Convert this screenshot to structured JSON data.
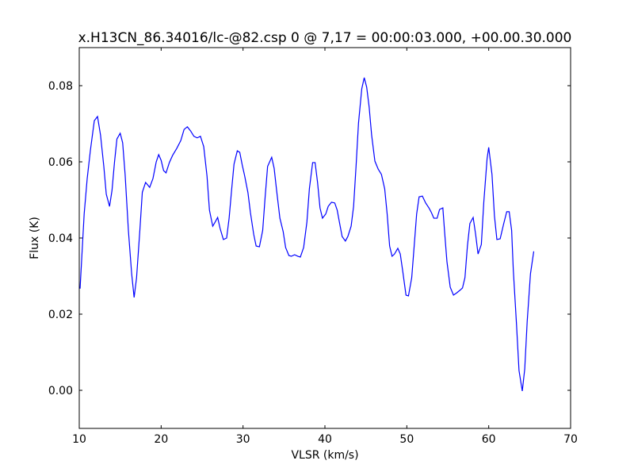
{
  "chart_data": {
    "type": "line",
    "title": "x.H13CN_86.34016/lc-@82.csp 0 @ 7,17 = 00:00:03.000, +00.00.30.000",
    "x_label": "VLSR (km/s)",
    "y_label": "Flux (K)",
    "xlim": [
      10,
      70
    ],
    "xticks": [
      10,
      20,
      30,
      40,
      50,
      60,
      70
    ],
    "ylim": [
      -0.01,
      0.09
    ],
    "yticks": [
      {
        "value": 0,
        "label": "0.00"
      },
      0.02,
      0.04,
      0.06,
      0.08
    ],
    "x": [
      10.1,
      10.6,
      10.97,
      11.36,
      11.84,
      12.23,
      12.6,
      13.0,
      13.3,
      13.7,
      14.0,
      14.3,
      14.6,
      15.0,
      15.3,
      15.6,
      16.0,
      16.4,
      16.7,
      17.0,
      17.4,
      17.7,
      18.1,
      18.6,
      19.0,
      19.4,
      19.7,
      20.0,
      20.3,
      20.6,
      21.0,
      21.4,
      21.9,
      22.4,
      22.8,
      23.2,
      23.6,
      24.0,
      24.4,
      24.8,
      25.2,
      25.6,
      25.9,
      26.3,
      26.6,
      26.9,
      27.2,
      27.6,
      28.0,
      28.3,
      28.6,
      28.9,
      29.3,
      29.6,
      29.9,
      30.2,
      30.6,
      30.9,
      31.3,
      31.6,
      32.0,
      32.4,
      32.7,
      33.0,
      33.5,
      33.8,
      34.1,
      34.5,
      34.9,
      35.2,
      35.6,
      35.9,
      36.3,
      36.7,
      37.0,
      37.4,
      37.8,
      38.1,
      38.5,
      38.8,
      39.1,
      39.4,
      39.7,
      40.1,
      40.4,
      40.8,
      41.2,
      41.5,
      41.8,
      42.1,
      42.5,
      42.8,
      43.2,
      43.5,
      43.8,
      44.1,
      44.5,
      44.8,
      45.1,
      45.4,
      45.7,
      46.1,
      46.5,
      46.9,
      47.3,
      47.6,
      47.9,
      48.2,
      48.5,
      48.9,
      49.2,
      49.5,
      49.9,
      50.2,
      50.6,
      50.9,
      51.2,
      51.5,
      51.9,
      52.3,
      52.7,
      53.0,
      53.3,
      53.7,
      54.0,
      54.4,
      54.6,
      54.9,
      55.3,
      55.7,
      56.1,
      56.5,
      56.8,
      57.1,
      57.4,
      57.7,
      58.1,
      58.4,
      58.7,
      59.1,
      59.4,
      59.8,
      60.0,
      60.4,
      60.7,
      61.0,
      61.4,
      61.8,
      62.2,
      62.5,
      62.8,
      63.0,
      63.4,
      63.7,
      64.1,
      64.4,
      64.7,
      65.1,
      65.5
    ],
    "series": [
      {
        "color": "#0000ff",
        "values": [
          0.0267,
          0.0463,
          0.0556,
          0.063,
          0.0708,
          0.0719,
          0.067,
          0.0588,
          0.0515,
          0.0483,
          0.0525,
          0.0598,
          0.066,
          0.0675,
          0.065,
          0.0567,
          0.042,
          0.0306,
          0.0244,
          0.0296,
          0.042,
          0.052,
          0.0546,
          0.0533,
          0.0556,
          0.06,
          0.0619,
          0.0604,
          0.0577,
          0.0571,
          0.0598,
          0.0617,
          0.0635,
          0.0656,
          0.0685,
          0.0692,
          0.0681,
          0.0667,
          0.0663,
          0.0667,
          0.064,
          0.0563,
          0.0473,
          0.0431,
          0.0442,
          0.0454,
          0.0425,
          0.0396,
          0.04,
          0.0452,
          0.0525,
          0.0594,
          0.0629,
          0.0625,
          0.0592,
          0.0563,
          0.0519,
          0.0467,
          0.041,
          0.0379,
          0.0377,
          0.042,
          0.0508,
          0.0588,
          0.0612,
          0.0583,
          0.0525,
          0.0452,
          0.0417,
          0.0375,
          0.0354,
          0.0352,
          0.0356,
          0.0352,
          0.035,
          0.0375,
          0.0442,
          0.0529,
          0.0598,
          0.0598,
          0.0546,
          0.0479,
          0.0452,
          0.0463,
          0.0483,
          0.0494,
          0.0492,
          0.0473,
          0.0438,
          0.0404,
          0.0392,
          0.0404,
          0.0431,
          0.0483,
          0.0588,
          0.0702,
          0.0792,
          0.0821,
          0.0796,
          0.0744,
          0.0671,
          0.0602,
          0.0581,
          0.0567,
          0.0529,
          0.0463,
          0.0379,
          0.0352,
          0.0358,
          0.0373,
          0.0358,
          0.0313,
          0.025,
          0.0248,
          0.0296,
          0.0379,
          0.0463,
          0.0508,
          0.051,
          0.0492,
          0.0479,
          0.0467,
          0.0452,
          0.0452,
          0.0475,
          0.0479,
          0.042,
          0.0338,
          0.0271,
          0.025,
          0.0256,
          0.0263,
          0.0269,
          0.0296,
          0.0379,
          0.0438,
          0.0454,
          0.041,
          0.0358,
          0.0383,
          0.0494,
          0.0608,
          0.0638,
          0.0567,
          0.0458,
          0.0396,
          0.0398,
          0.0435,
          0.0469,
          0.0469,
          0.042,
          0.0317,
          0.0171,
          0.0052,
          -0.0002,
          0.0056,
          0.0181,
          0.0306,
          0.0365
        ]
      }
    ]
  }
}
